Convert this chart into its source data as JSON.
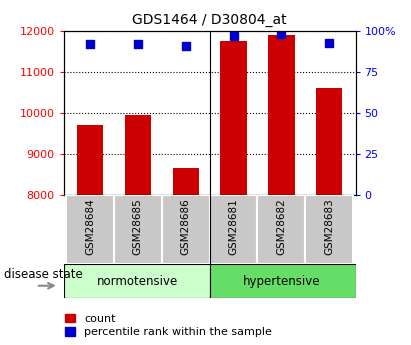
{
  "title": "GDS1464 / D30804_at",
  "samples": [
    "GSM28684",
    "GSM28685",
    "GSM28686",
    "GSM28681",
    "GSM28682",
    "GSM28683"
  ],
  "counts": [
    9700,
    9950,
    8650,
    11750,
    11900,
    10600
  ],
  "percentile_ranks": [
    92,
    92,
    91,
    97,
    98,
    93
  ],
  "ymin": 8000,
  "ymax": 12000,
  "yticks_left": [
    8000,
    9000,
    10000,
    11000,
    12000
  ],
  "yticks_right": [
    0,
    25,
    50,
    75,
    100
  ],
  "bar_color": "#cc0000",
  "dot_color": "#0000cc",
  "group1_label": "normotensive",
  "group2_label": "hypertensive",
  "group1_bg": "#ccffcc",
  "group2_bg": "#66dd66",
  "xlabel_label": "disease state",
  "legend_count": "count",
  "legend_pct": "percentile rank within the sample",
  "background_color": "#ffffff",
  "plot_bg": "#ffffff",
  "tick_label_bg": "#c8c8c8",
  "dot_size": 30
}
